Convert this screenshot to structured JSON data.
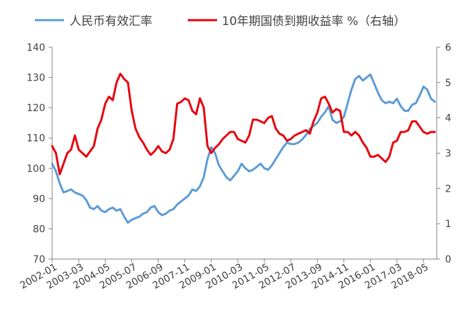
{
  "chart_data": {
    "type": "line",
    "title": "",
    "legend": {
      "placement": "top",
      "entries": [
        {
          "name": "人民币有效汇率",
          "color": "#5B9BD5",
          "axis": "left"
        },
        {
          "name": "10年期国债到期收益率 %（右轴）",
          "color": "#E8000B",
          "axis": "right"
        }
      ]
    },
    "x_tick_labels": [
      "2002-01",
      "2003-03",
      "2004-05",
      "2005-07",
      "2006-09",
      "2007-11",
      "2009-01",
      "2010-03",
      "2011-05",
      "2012-07",
      "2013-09",
      "2014-11",
      "2016-01",
      "2017-03",
      "2018-05"
    ],
    "left_axis": {
      "min": 70,
      "max": 140,
      "ticks": [
        70,
        80,
        90,
        100,
        110,
        120,
        130,
        140
      ]
    },
    "right_axis": {
      "min": 0,
      "max": 6,
      "ticks": [
        0,
        1,
        2,
        3,
        4,
        5,
        6
      ]
    },
    "grid": false,
    "series": [
      {
        "name": "人民币有效汇率",
        "axis": "left",
        "color": "#5B9BD5",
        "points": [
          [
            "2002-01",
            101.5
          ],
          [
            "2002-03",
            99
          ],
          [
            "2002-05",
            95
          ],
          [
            "2002-07",
            92
          ],
          [
            "2002-09",
            92.5
          ],
          [
            "2002-11",
            93
          ],
          [
            "2003-01",
            92
          ],
          [
            "2003-03",
            91.5
          ],
          [
            "2003-05",
            91
          ],
          [
            "2003-07",
            89.5
          ],
          [
            "2003-09",
            87
          ],
          [
            "2003-11",
            86.5
          ],
          [
            "2004-01",
            87.5
          ],
          [
            "2004-03",
            86
          ],
          [
            "2004-05",
            85.5
          ],
          [
            "2004-07",
            86.5
          ],
          [
            "2004-09",
            87
          ],
          [
            "2004-11",
            86
          ],
          [
            "2005-01",
            86.5
          ],
          [
            "2005-03",
            84
          ],
          [
            "2005-05",
            82
          ],
          [
            "2005-07",
            83
          ],
          [
            "2005-09",
            83.5
          ],
          [
            "2005-11",
            84
          ],
          [
            "2006-01",
            85
          ],
          [
            "2006-03",
            85.5
          ],
          [
            "2006-05",
            87
          ],
          [
            "2006-07",
            87.5
          ],
          [
            "2006-09",
            85.5
          ],
          [
            "2006-11",
            84.5
          ],
          [
            "2007-01",
            85
          ],
          [
            "2007-03",
            86
          ],
          [
            "2007-05",
            86.5
          ],
          [
            "2007-07",
            88
          ],
          [
            "2007-09",
            89
          ],
          [
            "2007-11",
            90
          ],
          [
            "2008-01",
            91
          ],
          [
            "2008-03",
            93
          ],
          [
            "2008-05",
            92.5
          ],
          [
            "2008-07",
            94
          ],
          [
            "2008-09",
            97
          ],
          [
            "2008-11",
            103
          ],
          [
            "2009-01",
            107
          ],
          [
            "2009-03",
            105
          ],
          [
            "2009-05",
            101
          ],
          [
            "2009-07",
            99
          ],
          [
            "2009-09",
            97
          ],
          [
            "2009-11",
            96
          ],
          [
            "2010-01",
            97.5
          ],
          [
            "2010-03",
            99
          ],
          [
            "2010-05",
            101.5
          ],
          [
            "2010-07",
            100
          ],
          [
            "2010-09",
            99
          ],
          [
            "2010-11",
            99.5
          ],
          [
            "2011-01",
            100.5
          ],
          [
            "2011-03",
            101.5
          ],
          [
            "2011-05",
            100
          ],
          [
            "2011-07",
            99.5
          ],
          [
            "2011-09",
            101
          ],
          [
            "2011-11",
            103
          ],
          [
            "2012-01",
            105
          ],
          [
            "2012-03",
            107
          ],
          [
            "2012-05",
            108.5
          ],
          [
            "2012-07",
            108
          ],
          [
            "2012-09",
            108
          ],
          [
            "2012-11",
            108.5
          ],
          [
            "2013-01",
            109.5
          ],
          [
            "2013-03",
            111
          ],
          [
            "2013-05",
            113
          ],
          [
            "2013-07",
            114
          ],
          [
            "2013-09",
            115
          ],
          [
            "2013-11",
            117
          ],
          [
            "2014-01",
            118.5
          ],
          [
            "2014-03",
            120.5
          ],
          [
            "2014-05",
            116
          ],
          [
            "2014-07",
            115
          ],
          [
            "2014-09",
            115.5
          ],
          [
            "2014-11",
            117
          ],
          [
            "2015-01",
            121.5
          ],
          [
            "2015-03",
            126
          ],
          [
            "2015-05",
            129.5
          ],
          [
            "2015-07",
            130.5
          ],
          [
            "2015-09",
            129
          ],
          [
            "2015-11",
            130
          ],
          [
            "2016-01",
            131
          ],
          [
            "2016-03",
            128
          ],
          [
            "2016-05",
            125
          ],
          [
            "2016-07",
            122.5
          ],
          [
            "2016-09",
            121.5
          ],
          [
            "2016-11",
            122
          ],
          [
            "2017-01",
            121.5
          ],
          [
            "2017-03",
            123
          ],
          [
            "2017-05",
            120.5
          ],
          [
            "2017-07",
            119
          ],
          [
            "2017-09",
            119
          ],
          [
            "2017-11",
            121
          ],
          [
            "2018-01",
            121.5
          ],
          [
            "2018-03",
            124
          ],
          [
            "2018-05",
            127
          ],
          [
            "2018-07",
            126
          ],
          [
            "2018-09",
            123
          ],
          [
            "2018-11",
            122
          ]
        ]
      },
      {
        "name": "10年期国债到期收益率 %（右轴）",
        "axis": "right",
        "color": "#E8000B",
        "points": [
          [
            "2002-01",
            3.2
          ],
          [
            "2002-03",
            3.0
          ],
          [
            "2002-05",
            2.4
          ],
          [
            "2002-07",
            2.7
          ],
          [
            "2002-09",
            3.0
          ],
          [
            "2002-11",
            3.1
          ],
          [
            "2003-01",
            3.5
          ],
          [
            "2003-03",
            3.1
          ],
          [
            "2003-05",
            3.0
          ],
          [
            "2003-07",
            2.9
          ],
          [
            "2003-09",
            3.05
          ],
          [
            "2003-11",
            3.2
          ],
          [
            "2004-01",
            3.7
          ],
          [
            "2004-03",
            3.95
          ],
          [
            "2004-05",
            4.4
          ],
          [
            "2004-07",
            4.6
          ],
          [
            "2004-09",
            4.5
          ],
          [
            "2004-11",
            5.0
          ],
          [
            "2005-01",
            5.25
          ],
          [
            "2005-03",
            5.1
          ],
          [
            "2005-05",
            5.0
          ],
          [
            "2005-07",
            4.2
          ],
          [
            "2005-09",
            3.7
          ],
          [
            "2005-11",
            3.45
          ],
          [
            "2006-01",
            3.3
          ],
          [
            "2006-03",
            3.1
          ],
          [
            "2006-05",
            2.95
          ],
          [
            "2006-07",
            3.05
          ],
          [
            "2006-09",
            3.2
          ],
          [
            "2006-11",
            3.05
          ],
          [
            "2007-01",
            3.0
          ],
          [
            "2007-03",
            3.1
          ],
          [
            "2007-05",
            3.4
          ],
          [
            "2007-07",
            4.4
          ],
          [
            "2007-09",
            4.45
          ],
          [
            "2007-11",
            4.55
          ],
          [
            "2008-01",
            4.5
          ],
          [
            "2008-03",
            4.2
          ],
          [
            "2008-05",
            4.1
          ],
          [
            "2008-07",
            4.55
          ],
          [
            "2008-09",
            4.3
          ],
          [
            "2008-11",
            3.2
          ],
          [
            "2009-01",
            3.0
          ],
          [
            "2009-03",
            3.15
          ],
          [
            "2009-05",
            3.25
          ],
          [
            "2009-07",
            3.4
          ],
          [
            "2009-09",
            3.5
          ],
          [
            "2009-11",
            3.6
          ],
          [
            "2010-01",
            3.6
          ],
          [
            "2010-03",
            3.4
          ],
          [
            "2010-05",
            3.35
          ],
          [
            "2010-07",
            3.3
          ],
          [
            "2010-09",
            3.5
          ],
          [
            "2010-11",
            3.95
          ],
          [
            "2011-01",
            3.95
          ],
          [
            "2011-03",
            3.9
          ],
          [
            "2011-05",
            3.85
          ],
          [
            "2011-07",
            4.0
          ],
          [
            "2011-09",
            4.05
          ],
          [
            "2011-11",
            3.7
          ],
          [
            "2012-01",
            3.55
          ],
          [
            "2012-03",
            3.5
          ],
          [
            "2012-05",
            3.35
          ],
          [
            "2012-07",
            3.4
          ],
          [
            "2012-09",
            3.5
          ],
          [
            "2012-11",
            3.55
          ],
          [
            "2013-01",
            3.6
          ],
          [
            "2013-03",
            3.65
          ],
          [
            "2013-05",
            3.55
          ],
          [
            "2013-07",
            3.9
          ],
          [
            "2013-09",
            4.15
          ],
          [
            "2013-11",
            4.55
          ],
          [
            "2014-01",
            4.6
          ],
          [
            "2014-03",
            4.4
          ],
          [
            "2014-05",
            4.15
          ],
          [
            "2014-07",
            4.25
          ],
          [
            "2014-09",
            4.2
          ],
          [
            "2014-11",
            3.6
          ],
          [
            "2015-01",
            3.6
          ],
          [
            "2015-03",
            3.5
          ],
          [
            "2015-05",
            3.6
          ],
          [
            "2015-07",
            3.5
          ],
          [
            "2015-09",
            3.3
          ],
          [
            "2015-11",
            3.15
          ],
          [
            "2016-01",
            2.9
          ],
          [
            "2016-03",
            2.9
          ],
          [
            "2016-05",
            2.95
          ],
          [
            "2016-07",
            2.85
          ],
          [
            "2016-09",
            2.75
          ],
          [
            "2016-11",
            2.9
          ],
          [
            "2017-01",
            3.3
          ],
          [
            "2017-03",
            3.35
          ],
          [
            "2017-05",
            3.6
          ],
          [
            "2017-07",
            3.6
          ],
          [
            "2017-09",
            3.65
          ],
          [
            "2017-11",
            3.9
          ],
          [
            "2018-01",
            3.9
          ],
          [
            "2018-03",
            3.75
          ],
          [
            "2018-05",
            3.6
          ],
          [
            "2018-07",
            3.55
          ],
          [
            "2018-09",
            3.6
          ],
          [
            "2018-11",
            3.6
          ]
        ]
      }
    ]
  }
}
